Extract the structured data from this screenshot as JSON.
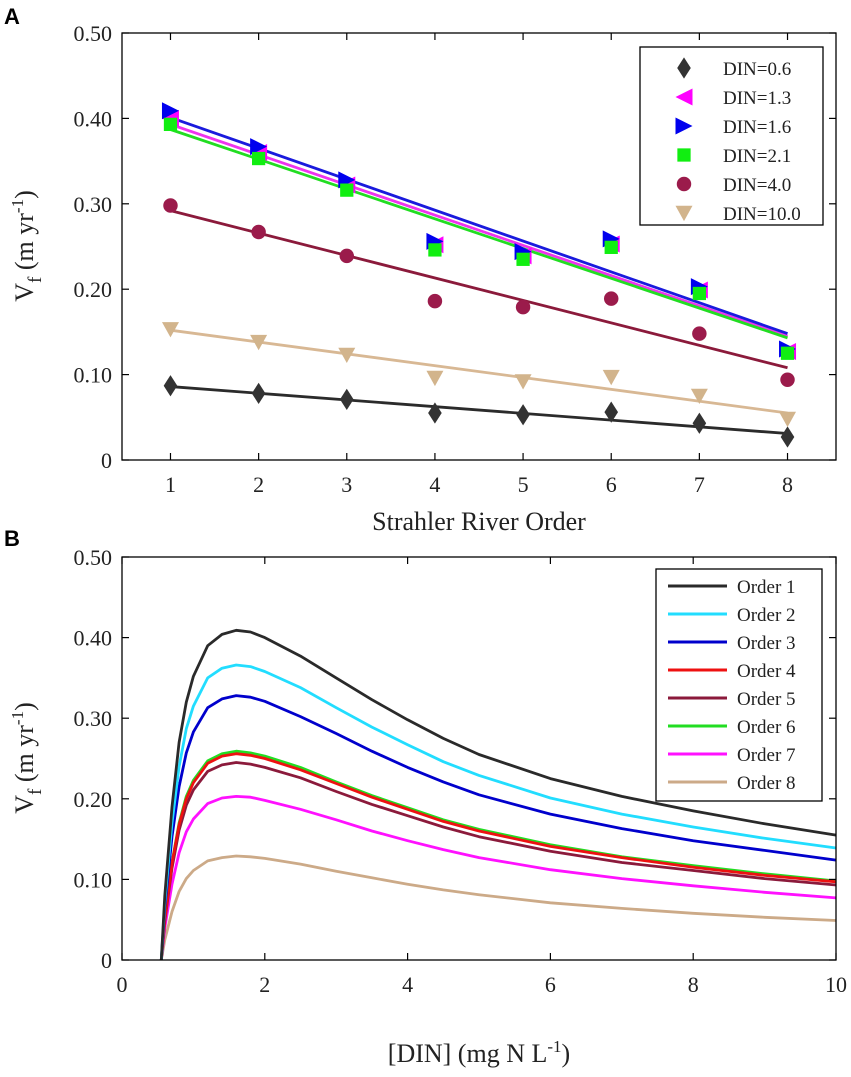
{
  "chart_data": [
    {
      "panel_label": "A",
      "type": "scatter",
      "xlabel": "Strahler River Order",
      "ylabel": {
        "main": "V",
        "sub": "f",
        "unit_a": " (m yr",
        "sup": "-1",
        "unit_b": ")"
      },
      "xlim": [
        0.45,
        8.55
      ],
      "ylim": [
        0,
        0.5
      ],
      "x_ticks": [
        1,
        2,
        3,
        4,
        5,
        6,
        7,
        8
      ],
      "y_ticks": [
        0,
        0.1,
        0.2,
        0.3,
        0.4,
        0.5
      ],
      "y_tick_labels": [
        "0",
        "0.10",
        "0.20",
        "0.30",
        "0.40",
        "0.50"
      ],
      "legend_position": "top-right",
      "series": [
        {
          "name": "DIN=0.6",
          "marker": "diamond",
          "color": "#333333",
          "x": [
            1,
            2,
            3,
            4,
            5,
            6,
            7,
            8
          ],
          "values": [
            0.087,
            0.078,
            0.071,
            0.055,
            0.053,
            0.056,
            0.043,
            0.027
          ],
          "fit": [
            0.086,
            0.031
          ]
        },
        {
          "name": "DIN=1.3",
          "marker": "triangle-left",
          "color": "#ff00ff",
          "x": [
            1,
            2,
            3,
            4,
            5,
            6,
            7,
            8
          ],
          "values": [
            0.4,
            0.36,
            0.322,
            0.252,
            0.239,
            0.253,
            0.199,
            0.127
          ],
          "fit": [
            0.393,
            0.145
          ]
        },
        {
          "name": "DIN=1.6",
          "marker": "triangle-right",
          "color": "#0000ee",
          "x": [
            1,
            2,
            3,
            4,
            5,
            6,
            7,
            8
          ],
          "values": [
            0.409,
            0.367,
            0.328,
            0.256,
            0.244,
            0.259,
            0.203,
            0.13
          ],
          "fit": [
            0.401,
            0.148
          ]
        },
        {
          "name": "DIN=2.1",
          "marker": "square",
          "color": "#11ee11",
          "x": [
            1,
            2,
            3,
            4,
            5,
            6,
            7,
            8
          ],
          "values": [
            0.393,
            0.353,
            0.316,
            0.246,
            0.235,
            0.249,
            0.195,
            0.125
          ],
          "fit": [
            0.387,
            0.143
          ]
        },
        {
          "name": "DIN=4.0",
          "marker": "circle",
          "color": "#9b1b4b",
          "x": [
            1,
            2,
            3,
            4,
            5,
            6,
            7,
            8
          ],
          "values": [
            0.298,
            0.267,
            0.239,
            0.186,
            0.179,
            0.189,
            0.148,
            0.094
          ],
          "fit": [
            0.292,
            0.108
          ]
        },
        {
          "name": "DIN=10.0",
          "marker": "triangle-down",
          "color": "#d2b48c",
          "x": [
            1,
            2,
            3,
            4,
            5,
            6,
            7,
            8
          ],
          "values": [
            0.153,
            0.138,
            0.123,
            0.096,
            0.092,
            0.097,
            0.075,
            0.048
          ],
          "fit": [
            0.152,
            0.055
          ]
        }
      ]
    },
    {
      "panel_label": "B",
      "type": "line",
      "xlabel": {
        "main": "[DIN] (mg N L",
        "sup": "-1",
        "tail": ")"
      },
      "ylabel": {
        "main": "V",
        "sub": "f",
        "unit_a": " (m yr",
        "sup": "-1",
        "unit_b": ")"
      },
      "xlim": [
        0,
        10
      ],
      "ylim": [
        0,
        0.5
      ],
      "x_ticks": [
        0,
        2,
        4,
        6,
        8,
        10
      ],
      "y_ticks": [
        0,
        0.1,
        0.2,
        0.3,
        0.4,
        0.5
      ],
      "y_tick_labels": [
        "0",
        "0.10",
        "0.20",
        "0.30",
        "0.40",
        "0.50"
      ],
      "legend_position": "top-right",
      "x": [
        0.55,
        0.6,
        0.7,
        0.8,
        0.9,
        1.0,
        1.2,
        1.4,
        1.6,
        1.8,
        2.0,
        2.5,
        3.0,
        3.5,
        4.0,
        4.5,
        5.0,
        6.0,
        7.0,
        8.0,
        9.0,
        10.0
      ],
      "series": [
        {
          "name": "Order 1",
          "color": "#2a2a2a",
          "values": [
            0,
            0.08,
            0.19,
            0.27,
            0.32,
            0.352,
            0.39,
            0.404,
            0.409,
            0.407,
            0.4,
            0.377,
            0.35,
            0.323,
            0.298,
            0.275,
            0.255,
            0.225,
            0.203,
            0.185,
            0.169,
            0.155
          ]
        },
        {
          "name": "Order 2",
          "color": "#22ddff",
          "values": [
            0,
            0.072,
            0.17,
            0.24,
            0.287,
            0.315,
            0.35,
            0.362,
            0.366,
            0.364,
            0.358,
            0.338,
            0.313,
            0.289,
            0.267,
            0.246,
            0.229,
            0.201,
            0.181,
            0.165,
            0.151,
            0.139
          ]
        },
        {
          "name": "Order 3",
          "color": "#0000cc",
          "values": [
            0,
            0.065,
            0.153,
            0.215,
            0.257,
            0.283,
            0.313,
            0.324,
            0.328,
            0.326,
            0.321,
            0.302,
            0.281,
            0.259,
            0.239,
            0.221,
            0.205,
            0.181,
            0.163,
            0.148,
            0.136,
            0.124
          ]
        },
        {
          "name": "Order 4",
          "color": "#ee1111",
          "values": [
            0,
            0.05,
            0.12,
            0.168,
            0.2,
            0.22,
            0.244,
            0.253,
            0.256,
            0.254,
            0.25,
            0.236,
            0.219,
            0.202,
            0.187,
            0.172,
            0.16,
            0.141,
            0.127,
            0.115,
            0.105,
            0.097
          ]
        },
        {
          "name": "Order 5",
          "color": "#8b1a3b",
          "values": [
            0,
            0.048,
            0.114,
            0.161,
            0.192,
            0.211,
            0.234,
            0.242,
            0.245,
            0.243,
            0.239,
            0.226,
            0.209,
            0.193,
            0.179,
            0.165,
            0.153,
            0.135,
            0.121,
            0.111,
            0.101,
            0.093
          ]
        },
        {
          "name": "Order 6",
          "color": "#22dd22",
          "values": [
            0,
            0.051,
            0.121,
            0.17,
            0.203,
            0.223,
            0.247,
            0.256,
            0.259,
            0.257,
            0.253,
            0.239,
            0.221,
            0.204,
            0.189,
            0.174,
            0.162,
            0.143,
            0.128,
            0.117,
            0.107,
            0.098
          ]
        },
        {
          "name": "Order 7",
          "color": "#ff11ff",
          "values": [
            0,
            0.04,
            0.094,
            0.133,
            0.159,
            0.175,
            0.194,
            0.201,
            0.203,
            0.202,
            0.198,
            0.187,
            0.174,
            0.16,
            0.148,
            0.137,
            0.127,
            0.112,
            0.101,
            0.092,
            0.084,
            0.077
          ]
        },
        {
          "name": "Order 8",
          "color": "#ccaa88",
          "values": [
            0,
            0.025,
            0.06,
            0.085,
            0.101,
            0.111,
            0.123,
            0.127,
            0.129,
            0.128,
            0.126,
            0.119,
            0.11,
            0.102,
            0.094,
            0.087,
            0.081,
            0.071,
            0.064,
            0.058,
            0.053,
            0.049
          ]
        }
      ]
    }
  ]
}
